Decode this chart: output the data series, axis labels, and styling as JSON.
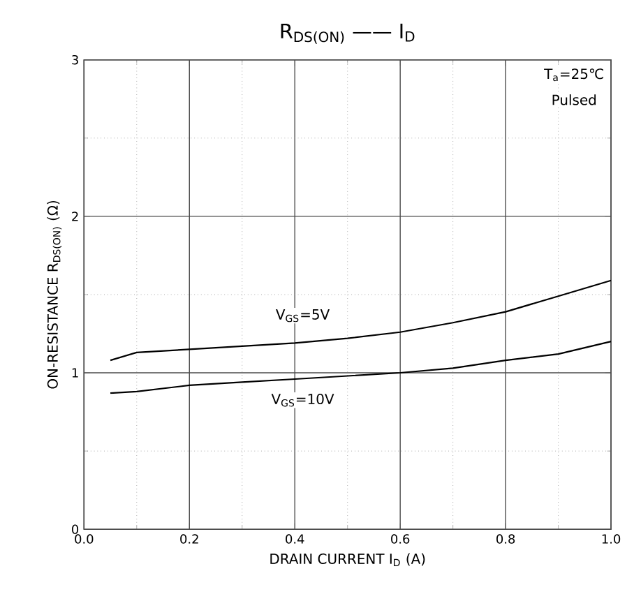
{
  "chart_data": {
    "type": "line",
    "title": "R$_{DS(ON)}$ —— I$_{D}$",
    "xlabel": "DRAIN CURRENT   I$_{D}$   (A)",
    "ylabel": "ON-RESISTANCE   R$_{DS(ON)}$   (Ω)",
    "x": [
      0.05,
      0.1,
      0.2,
      0.3,
      0.4,
      0.5,
      0.6,
      0.7,
      0.8,
      0.9,
      1.0
    ],
    "series": [
      {
        "color": "#000000",
        "values": [
          1.08,
          1.13,
          1.15,
          1.17,
          1.19,
          1.22,
          1.26,
          1.32,
          1.39,
          1.49,
          1.59
        ]
      },
      {
        "color": "#000000",
        "values": [
          0.87,
          0.88,
          0.92,
          0.94,
          0.96,
          0.98,
          1.0,
          1.03,
          1.08,
          1.12,
          1.2
        ]
      }
    ],
    "xlim": [
      0,
      1
    ],
    "ylim": [
      0,
      3
    ],
    "xticks": [
      {
        "value": 0,
        "label": "0.0"
      },
      {
        "value": 0.2,
        "label": "0.2"
      },
      {
        "value": 0.4,
        "label": "0.4"
      },
      {
        "value": 0.6,
        "label": "0.6"
      },
      {
        "value": 0.8,
        "label": "0.8"
      },
      {
        "value": 1,
        "label": "1.0"
      }
    ],
    "yticks": [
      0,
      1,
      2,
      3
    ],
    "grid": true,
    "marker": "none",
    "line_style": "solid",
    "annotations": [
      "V$_{GS}$=5V",
      "V$_{GS}$=10V",
      "T$_{a}$=25℃",
      "Pulsed"
    ]
  }
}
